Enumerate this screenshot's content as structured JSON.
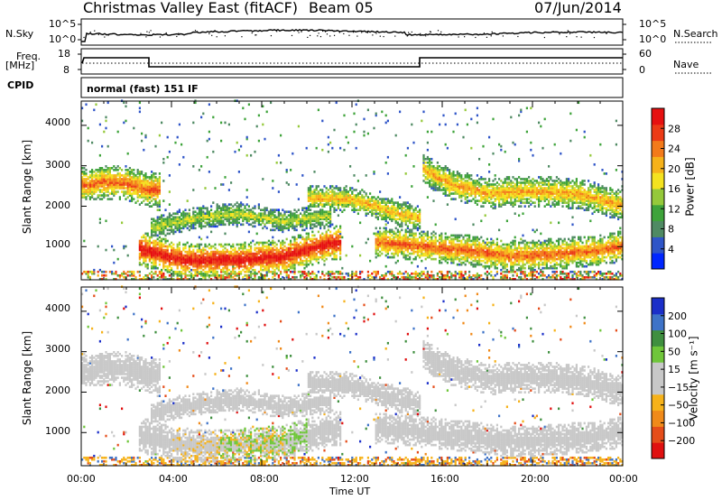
{
  "header": {
    "station": "Christmas Valley East (fitACF)",
    "beam": "Beam 05",
    "date": "07/Jun/2014"
  },
  "noise": {
    "left_label": "N.Sky",
    "right_label": "N.Search",
    "left_ticks": [
      "10^5",
      "10^0"
    ],
    "right_ticks": [
      "10^5",
      "10^0"
    ]
  },
  "freq": {
    "left_label_1": "Freq.",
    "left_label_2": "[MHz]",
    "right_label": "Nave",
    "left_ticks": [
      "18",
      "8"
    ],
    "right_ticks": [
      "60",
      "0"
    ]
  },
  "cpid": {
    "label": "CPID",
    "mode": "normal (fast) 151 IF"
  },
  "colors": {
    "power": [
      "#0026ff",
      "#2f55c8",
      "#4f8a63",
      "#3ea33a",
      "#95c93a",
      "#f4e21f",
      "#f6b21a",
      "#f37a1a",
      "#ec3a16",
      "#e61010"
    ],
    "velocity": [
      "#1b2fc9",
      "#3e73c8",
      "#3f8f3f",
      "#6fc63a",
      "#c8c8c8",
      "#c8c8c8",
      "#f6b21a",
      "#f08a1a",
      "#e54d1a",
      "#e01010"
    ]
  },
  "chart_data": [
    {
      "type": "heatmap",
      "quantity": "power",
      "ylabel": "Slant Range [km]",
      "xlabel": "",
      "ylim": [
        180,
        4600
      ],
      "y_ticks": [
        "1000",
        "2000",
        "3000",
        "4000"
      ],
      "colorbar_label": "Power [dB]",
      "colorbar_ticks": [
        "4",
        "8",
        "12",
        "16",
        "20",
        "24",
        "28"
      ],
      "series": [
        {
          "values": [
            [
              0.0,
              2500
            ],
            [
              1.0,
              2580
            ],
            [
              2.0,
              2550
            ],
            [
              3.0,
              2380
            ],
            [
              3.5,
              2400
            ]
          ]
        },
        {
          "values": [
            [
              3.0,
              1450
            ],
            [
              5.0,
              1700
            ],
            [
              7.0,
              1800
            ],
            [
              9.0,
              1600
            ],
            [
              11.0,
              1750
            ]
          ]
        },
        {
          "values": [
            [
              2.5,
              950
            ],
            [
              4.5,
              650
            ],
            [
              7.0,
              650
            ],
            [
              9.0,
              750
            ],
            [
              10.5,
              1000
            ],
            [
              11.5,
              1100
            ]
          ]
        },
        {
          "values": [
            [
              10.0,
              2200
            ],
            [
              12.0,
              2150
            ],
            [
              14.0,
              1800
            ],
            [
              15.0,
              1700
            ]
          ]
        },
        {
          "values": [
            [
              15.1,
              2900
            ],
            [
              16.5,
              2500
            ],
            [
              18.0,
              2300
            ],
            [
              20.0,
              2350
            ],
            [
              22.0,
              2300
            ],
            [
              24.0,
              2000
            ]
          ]
        },
        {
          "values": [
            [
              13.0,
              1100
            ],
            [
              15.0,
              1000
            ],
            [
              17.0,
              900
            ],
            [
              19.0,
              750
            ],
            [
              21.0,
              800
            ],
            [
              23.0,
              900
            ],
            [
              24.0,
              1000
            ]
          ]
        }
      ]
    },
    {
      "type": "heatmap",
      "quantity": "velocity",
      "ylabel": "Slant Range [km]",
      "xlabel": "Time UT",
      "ylim": [
        180,
        4600
      ],
      "y_ticks": [
        "1000",
        "2000",
        "3000",
        "4000"
      ],
      "x_ticks": [
        "00:00",
        "04:00",
        "08:00",
        "12:00",
        "16:00",
        "20:00",
        "00:00"
      ],
      "colorbar_label": "Velocity [m s⁻¹]",
      "colorbar_ticks": [
        "200",
        "100",
        "50",
        "15",
        "−15",
        "−50",
        "−100",
        "−200"
      ]
    }
  ]
}
